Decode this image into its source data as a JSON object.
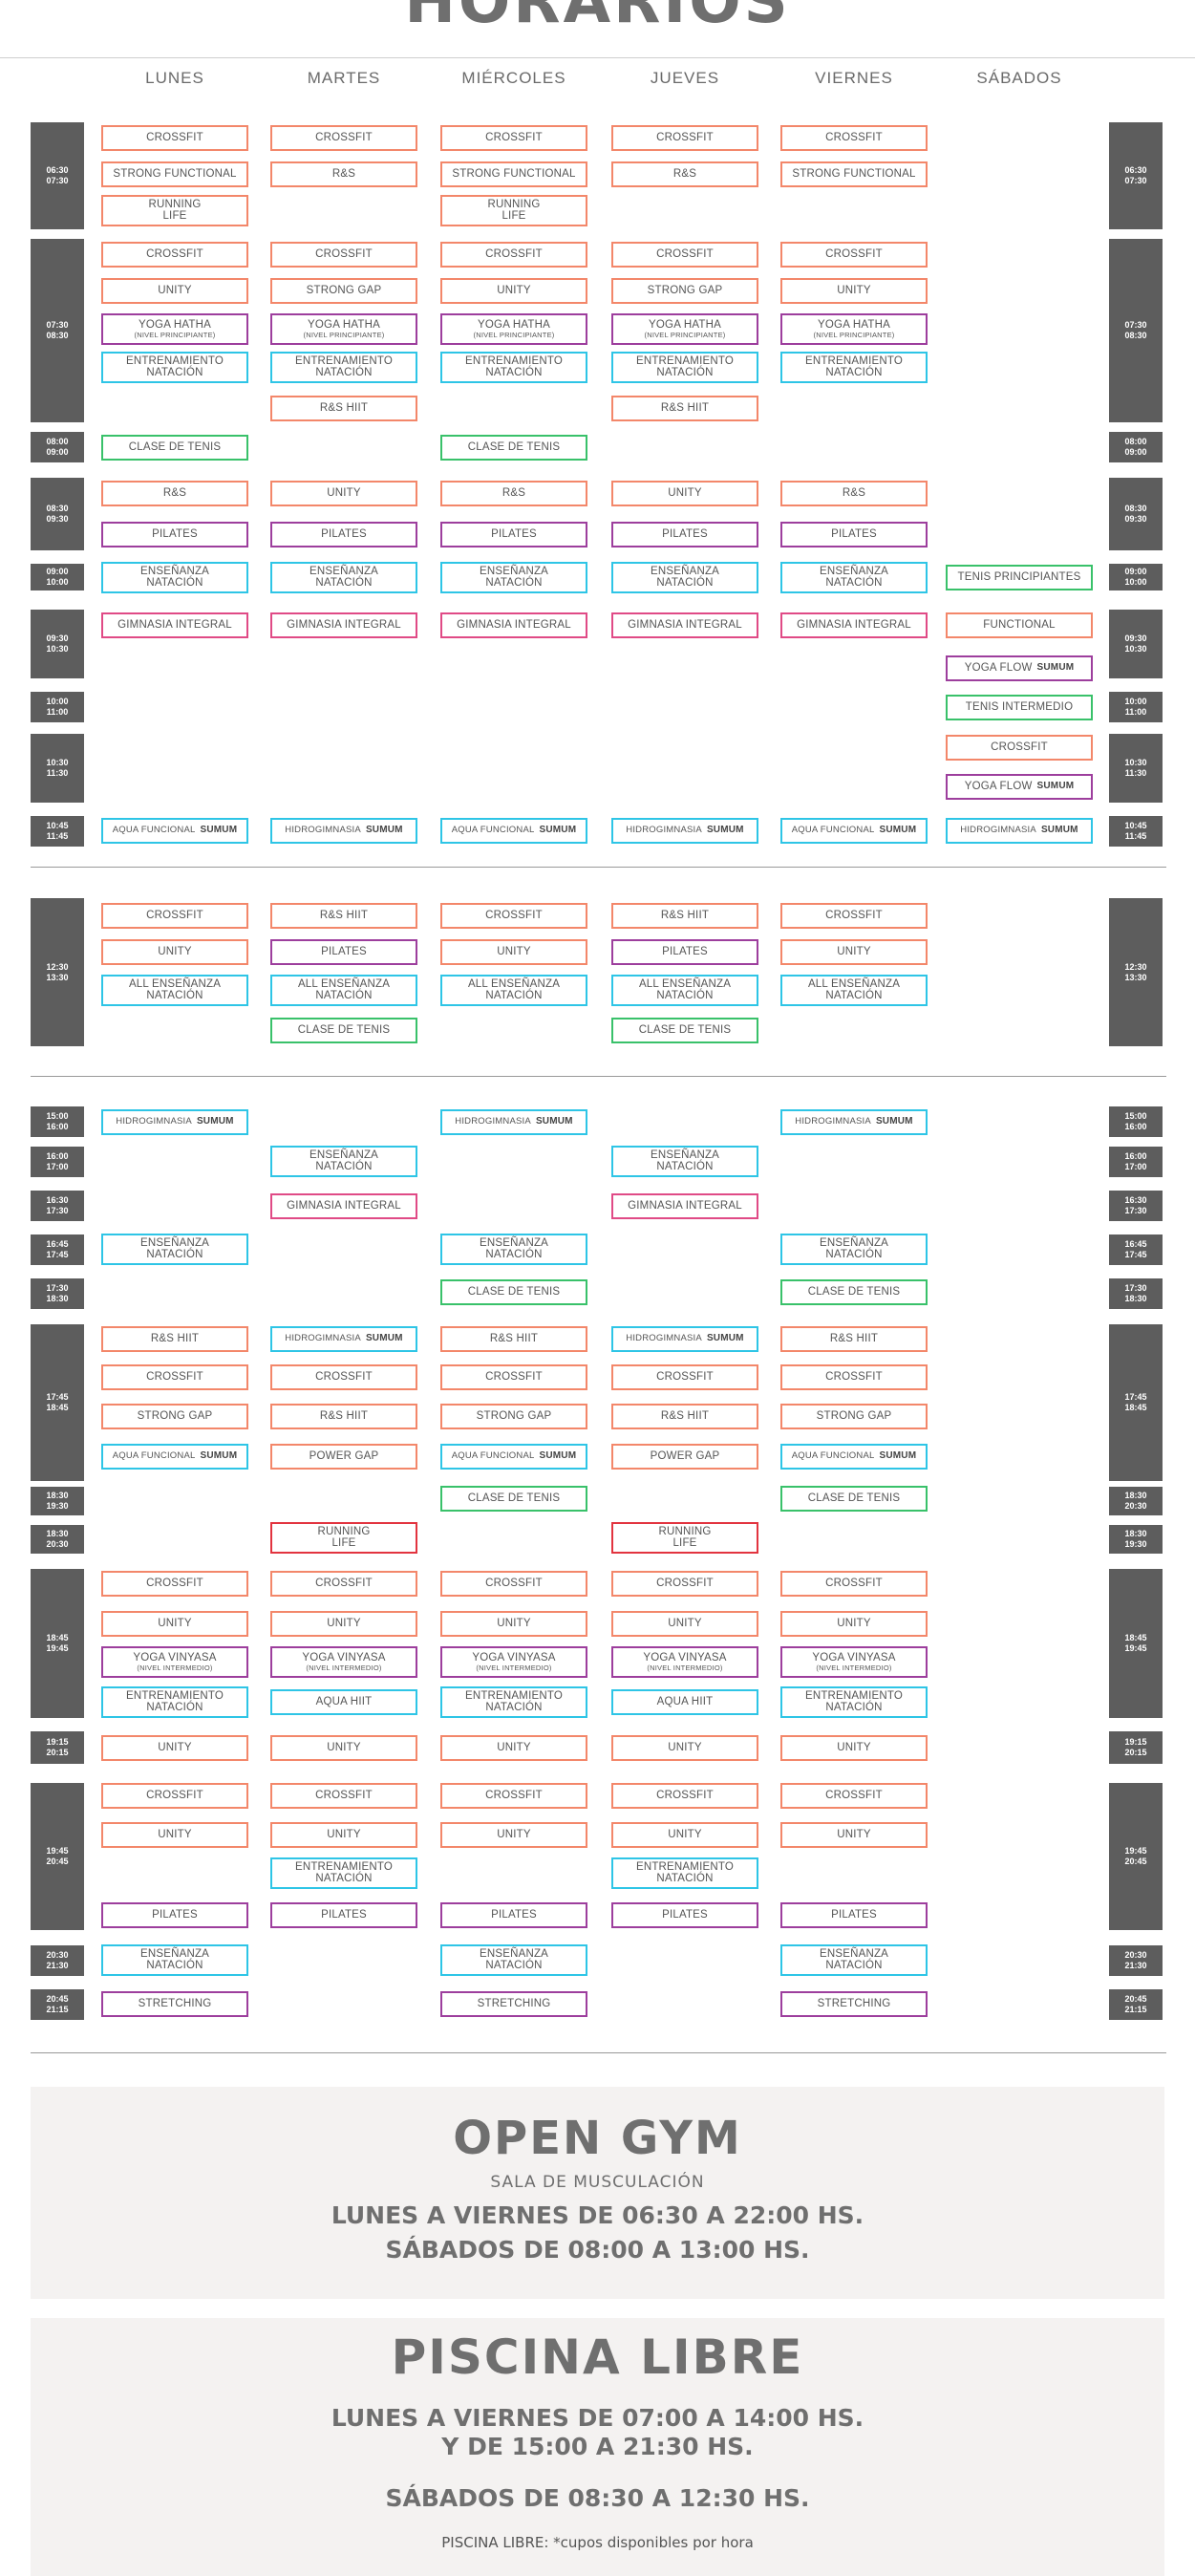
{
  "page_title": "HORARIOS",
  "days": [
    "LUNES",
    "MARTES",
    "MIÉRCOLES",
    "JUEVES",
    "VIERNES",
    "SÁBADOS"
  ],
  "colors": {
    "orange": "#f3876a",
    "purple": "#9d3e9d",
    "cyan": "#2ec5e6",
    "green": "#39c16a",
    "pink": "#e04a86",
    "red": "#e2343f",
    "time_block": "#5d5d5d",
    "panel": "#f4f2f1"
  },
  "time_blocks": [
    {
      "start": "06:30",
      "end": "07:30"
    },
    {
      "start": "07:30",
      "end": "08:30"
    },
    {
      "start": "08:00",
      "end": "09:00"
    },
    {
      "start": "08:30",
      "end": "09:30"
    },
    {
      "start": "09:00",
      "end": "10:00"
    },
    {
      "start": "09:30",
      "end": "10:30"
    },
    {
      "start": "10:00",
      "end": "11:00"
    },
    {
      "start": "10:30",
      "end": "11:30"
    },
    {
      "start": "10:45",
      "end": "11:45"
    },
    {
      "start": "12:30",
      "end": "13:30"
    },
    {
      "start": "15:00",
      "end": "16:00"
    },
    {
      "start": "16:00",
      "end": "17:00"
    },
    {
      "start": "16:30",
      "end": "17:30"
    },
    {
      "start": "16:45",
      "end": "17:45"
    },
    {
      "start": "17:30",
      "end": "18:30"
    },
    {
      "start": "17:45",
      "end": "18:45"
    },
    {
      "start": "18:30",
      "end": "19:30"
    },
    {
      "start": "18:30",
      "end": "20:30"
    },
    {
      "start": "18:45",
      "end": "19:45"
    },
    {
      "start": "19:15",
      "end": "20:15"
    },
    {
      "start": "19:45",
      "end": "20:45"
    },
    {
      "start": "20:30",
      "end": "21:30"
    },
    {
      "start": "20:45",
      "end": "21:15"
    }
  ],
  "time_blocks_right": [
    {
      "start": "06:30",
      "end": "07:30"
    },
    {
      "start": "07:30",
      "end": "08:30"
    },
    {
      "start": "08:00",
      "end": "09:00"
    },
    {
      "start": "08:30",
      "end": "09:30"
    },
    {
      "start": "09:00",
      "end": "10:00"
    },
    {
      "start": "09:30",
      "end": "10:30"
    },
    {
      "start": "10:00",
      "end": "11:00"
    },
    {
      "start": "10:30",
      "end": "11:30"
    },
    {
      "start": "10:45",
      "end": "11:45"
    },
    {
      "start": "12:30",
      "end": "13:30"
    },
    {
      "start": "15:00",
      "end": "16:00"
    },
    {
      "start": "16:00",
      "end": "17:00"
    },
    {
      "start": "16:30",
      "end": "17:30"
    },
    {
      "start": "16:45",
      "end": "17:45"
    },
    {
      "start": "17:30",
      "end": "18:30"
    },
    {
      "start": "17:45",
      "end": "18:45"
    },
    {
      "start": "18:30",
      "end": "20:30"
    },
    {
      "start": "18:30",
      "end": "19:30"
    },
    {
      "start": "18:45",
      "end": "19:45"
    },
    {
      "start": "19:15",
      "end": "20:15"
    },
    {
      "start": "19:45",
      "end": "20:45"
    },
    {
      "start": "20:30",
      "end": "21:30"
    },
    {
      "start": "20:45",
      "end": "21:15"
    }
  ],
  "brand_logo": "SUMUM",
  "classes": [
    {
      "d": 0,
      "r": 0,
      "l1": "CROSSFIT",
      "c": "orange"
    },
    {
      "d": 1,
      "r": 0,
      "l1": "CROSSFIT",
      "c": "orange"
    },
    {
      "d": 2,
      "r": 0,
      "l1": "CROSSFIT",
      "c": "orange"
    },
    {
      "d": 3,
      "r": 0,
      "l1": "CROSSFIT",
      "c": "orange"
    },
    {
      "d": 4,
      "r": 0,
      "l1": "CROSSFIT",
      "c": "orange"
    },
    {
      "d": 0,
      "r": 1,
      "l1": "STRONG FUNCTIONAL",
      "c": "orange"
    },
    {
      "d": 1,
      "r": 1,
      "l1": "R&S",
      "c": "orange"
    },
    {
      "d": 2,
      "r": 1,
      "l1": "STRONG FUNCTIONAL",
      "c": "orange"
    },
    {
      "d": 3,
      "r": 1,
      "l1": "R&S",
      "c": "orange"
    },
    {
      "d": 4,
      "r": 1,
      "l1": "STRONG FUNCTIONAL",
      "c": "orange"
    },
    {
      "d": 0,
      "r": 2,
      "l1": "RUNNING",
      "l2": "LIFE",
      "c": "orange"
    },
    {
      "d": 2,
      "r": 2,
      "l1": "RUNNING",
      "l2": "LIFE",
      "c": "orange"
    },
    {
      "d": 0,
      "r": 3,
      "l1": "CROSSFIT",
      "c": "orange"
    },
    {
      "d": 1,
      "r": 3,
      "l1": "CROSSFIT",
      "c": "orange"
    },
    {
      "d": 2,
      "r": 3,
      "l1": "CROSSFIT",
      "c": "orange"
    },
    {
      "d": 3,
      "r": 3,
      "l1": "CROSSFIT",
      "c": "orange"
    },
    {
      "d": 4,
      "r": 3,
      "l1": "CROSSFIT",
      "c": "orange"
    },
    {
      "d": 0,
      "r": 4,
      "l1": "UNITY",
      "c": "orange"
    },
    {
      "d": 1,
      "r": 4,
      "l1": "STRONG GAP",
      "c": "orange"
    },
    {
      "d": 2,
      "r": 4,
      "l1": "UNITY",
      "c": "orange"
    },
    {
      "d": 3,
      "r": 4,
      "l1": "STRONG GAP",
      "c": "orange"
    },
    {
      "d": 4,
      "r": 4,
      "l1": "UNITY",
      "c": "orange"
    },
    {
      "d": 0,
      "r": 5,
      "l1": "YOGA HATHA",
      "sub": "(NIVEL PRINCIPIANTE)",
      "c": "purple"
    },
    {
      "d": 1,
      "r": 5,
      "l1": "YOGA HATHA",
      "sub": "(NIVEL PRINCIPIANTE)",
      "c": "purple"
    },
    {
      "d": 2,
      "r": 5,
      "l1": "YOGA HATHA",
      "sub": "(NIVEL PRINCIPIANTE)",
      "c": "purple"
    },
    {
      "d": 3,
      "r": 5,
      "l1": "YOGA HATHA",
      "sub": "(NIVEL PRINCIPIANTE)",
      "c": "purple"
    },
    {
      "d": 4,
      "r": 5,
      "l1": "YOGA HATHA",
      "sub": "(NIVEL PRINCIPIANTE)",
      "c": "purple"
    },
    {
      "d": 0,
      "r": 6,
      "l1": "ENTRENAMIENTO",
      "l2": "NATACIÓN",
      "c": "cyan"
    },
    {
      "d": 1,
      "r": 6,
      "l1": "ENTRENAMIENTO",
      "l2": "NATACIÓN",
      "c": "cyan"
    },
    {
      "d": 2,
      "r": 6,
      "l1": "ENTRENAMIENTO",
      "l2": "NATACIÓN",
      "c": "cyan"
    },
    {
      "d": 3,
      "r": 6,
      "l1": "ENTRENAMIENTO",
      "l2": "NATACIÓN",
      "c": "cyan"
    },
    {
      "d": 4,
      "r": 6,
      "l1": "ENTRENAMIENTO",
      "l2": "NATACIÓN",
      "c": "cyan"
    },
    {
      "d": 1,
      "r": 7,
      "l1": "R&S HIIT",
      "c": "orange"
    },
    {
      "d": 3,
      "r": 7,
      "l1": "R&S HIIT",
      "c": "orange"
    },
    {
      "d": 0,
      "r": 8,
      "l1": "CLASE DE TENIS",
      "c": "green"
    },
    {
      "d": 2,
      "r": 8,
      "l1": "CLASE DE TENIS",
      "c": "green"
    },
    {
      "d": 0,
      "r": 9,
      "l1": "R&S",
      "c": "orange"
    },
    {
      "d": 1,
      "r": 9,
      "l1": "UNITY",
      "c": "orange"
    },
    {
      "d": 2,
      "r": 9,
      "l1": "R&S",
      "c": "orange"
    },
    {
      "d": 3,
      "r": 9,
      "l1": "UNITY",
      "c": "orange"
    },
    {
      "d": 4,
      "r": 9,
      "l1": "R&S",
      "c": "orange"
    },
    {
      "d": 0,
      "r": 10,
      "l1": "PILATES",
      "c": "purple"
    },
    {
      "d": 1,
      "r": 10,
      "l1": "PILATES",
      "c": "purple"
    },
    {
      "d": 2,
      "r": 10,
      "l1": "PILATES",
      "c": "purple"
    },
    {
      "d": 3,
      "r": 10,
      "l1": "PILATES",
      "c": "purple"
    },
    {
      "d": 4,
      "r": 10,
      "l1": "PILATES",
      "c": "purple"
    },
    {
      "d": 0,
      "r": 11,
      "l1": "ENSEÑANZA",
      "l2": "NATACIÓN",
      "c": "cyan"
    },
    {
      "d": 1,
      "r": 11,
      "l1": "ENSEÑANZA",
      "l2": "NATACIÓN",
      "c": "cyan"
    },
    {
      "d": 2,
      "r": 11,
      "l1": "ENSEÑANZA",
      "l2": "NATACIÓN",
      "c": "cyan"
    },
    {
      "d": 3,
      "r": 11,
      "l1": "ENSEÑANZA",
      "l2": "NATACIÓN",
      "c": "cyan"
    },
    {
      "d": 4,
      "r": 11,
      "l1": "ENSEÑANZA",
      "l2": "NATACIÓN",
      "c": "cyan"
    },
    {
      "d": 5,
      "r": 11,
      "l1": "TENIS PRINCIPIANTES",
      "c": "green"
    },
    {
      "d": 0,
      "r": 12,
      "l1": "GIMNASIA INTEGRAL",
      "c": "pink"
    },
    {
      "d": 1,
      "r": 12,
      "l1": "GIMNASIA INTEGRAL",
      "c": "pink"
    },
    {
      "d": 2,
      "r": 12,
      "l1": "GIMNASIA INTEGRAL",
      "c": "pink"
    },
    {
      "d": 3,
      "r": 12,
      "l1": "GIMNASIA INTEGRAL",
      "c": "pink"
    },
    {
      "d": 4,
      "r": 12,
      "l1": "GIMNASIA INTEGRAL",
      "c": "pink"
    },
    {
      "d": 5,
      "r": 12,
      "l1": "FUNCTIONAL",
      "c": "orange"
    },
    {
      "d": 5,
      "r": 13,
      "l1": "YOGA FLOW",
      "logo": true,
      "c": "purple"
    },
    {
      "d": 5,
      "r": 14,
      "l1": "TENIS INTERMEDIO",
      "c": "green"
    },
    {
      "d": 5,
      "r": 15,
      "l1": "CROSSFIT",
      "c": "orange"
    },
    {
      "d": 5,
      "r": 16,
      "l1": "YOGA FLOW",
      "logo": true,
      "c": "purple"
    },
    {
      "d": 0,
      "r": 17,
      "l1": "AQUA FUNCIONAL",
      "logo": true,
      "c": "cyan"
    },
    {
      "d": 1,
      "r": 17,
      "l1": "HIDROGIMNASIA",
      "logo": true,
      "c": "cyan"
    },
    {
      "d": 2,
      "r": 17,
      "l1": "AQUA FUNCIONAL",
      "logo": true,
      "c": "cyan"
    },
    {
      "d": 3,
      "r": 17,
      "l1": "HIDROGIMNASIA",
      "logo": true,
      "c": "cyan"
    },
    {
      "d": 4,
      "r": 17,
      "l1": "AQUA FUNCIONAL",
      "logo": true,
      "c": "cyan"
    },
    {
      "d": 5,
      "r": 17,
      "l1": "HIDROGIMNASIA",
      "logo": true,
      "c": "cyan"
    },
    {
      "d": 0,
      "r": 18,
      "l1": "CROSSFIT",
      "c": "orange"
    },
    {
      "d": 1,
      "r": 18,
      "l1": "R&S HIIT",
      "c": "orange"
    },
    {
      "d": 2,
      "r": 18,
      "l1": "CROSSFIT",
      "c": "orange"
    },
    {
      "d": 3,
      "r": 18,
      "l1": "R&S HIIT",
      "c": "orange"
    },
    {
      "d": 4,
      "r": 18,
      "l1": "CROSSFIT",
      "c": "orange"
    },
    {
      "d": 0,
      "r": 19,
      "l1": "UNITY",
      "c": "orange"
    },
    {
      "d": 1,
      "r": 19,
      "l1": "PILATES",
      "c": "purple"
    },
    {
      "d": 2,
      "r": 19,
      "l1": "UNITY",
      "c": "orange"
    },
    {
      "d": 3,
      "r": 19,
      "l1": "PILATES",
      "c": "purple"
    },
    {
      "d": 4,
      "r": 19,
      "l1": "UNITY",
      "c": "orange"
    },
    {
      "d": 0,
      "r": 20,
      "l1": "ALL ENSEÑANZA",
      "l2": "NATACIÓN",
      "c": "cyan"
    },
    {
      "d": 1,
      "r": 20,
      "l1": "ALL ENSEÑANZA",
      "l2": "NATACIÓN",
      "c": "cyan"
    },
    {
      "d": 2,
      "r": 20,
      "l1": "ALL ENSEÑANZA",
      "l2": "NATACIÓN",
      "c": "cyan"
    },
    {
      "d": 3,
      "r": 20,
      "l1": "ALL ENSEÑANZA",
      "l2": "NATACIÓN",
      "c": "cyan"
    },
    {
      "d": 4,
      "r": 20,
      "l1": "ALL ENSEÑANZA",
      "l2": "NATACIÓN",
      "c": "cyan"
    },
    {
      "d": 1,
      "r": 21,
      "l1": "CLASE DE TENIS",
      "c": "green"
    },
    {
      "d": 3,
      "r": 21,
      "l1": "CLASE DE TENIS",
      "c": "green"
    },
    {
      "d": 0,
      "r": 22,
      "l1": "HIDROGIMNASIA",
      "logo": true,
      "c": "cyan"
    },
    {
      "d": 2,
      "r": 22,
      "l1": "HIDROGIMNASIA",
      "logo": true,
      "c": "cyan"
    },
    {
      "d": 4,
      "r": 22,
      "l1": "HIDROGIMNASIA",
      "logo": true,
      "c": "cyan"
    },
    {
      "d": 1,
      "r": 23,
      "l1": "ENSEÑANZA",
      "l2": "NATACIÓN",
      "c": "cyan"
    },
    {
      "d": 3,
      "r": 23,
      "l1": "ENSEÑANZA",
      "l2": "NATACIÓN",
      "c": "cyan"
    },
    {
      "d": 1,
      "r": 24,
      "l1": "GIMNASIA INTEGRAL",
      "c": "pink"
    },
    {
      "d": 3,
      "r": 24,
      "l1": "GIMNASIA INTEGRAL",
      "c": "pink"
    },
    {
      "d": 0,
      "r": 25,
      "l1": "ENSEÑANZA",
      "l2": "NATACIÓN",
      "c": "cyan"
    },
    {
      "d": 2,
      "r": 25,
      "l1": "ENSEÑANZA",
      "l2": "NATACIÓN",
      "c": "cyan"
    },
    {
      "d": 4,
      "r": 25,
      "l1": "ENSEÑANZA",
      "l2": "NATACIÓN",
      "c": "cyan"
    },
    {
      "d": 2,
      "r": 26,
      "l1": "CLASE DE TENIS",
      "c": "green"
    },
    {
      "d": 4,
      "r": 26,
      "l1": "CLASE DE TENIS",
      "c": "green"
    },
    {
      "d": 0,
      "r": 27,
      "l1": "R&S HIIT",
      "c": "orange"
    },
    {
      "d": 1,
      "r": 27,
      "l1": "HIDROGIMNASIA",
      "logo": true,
      "c": "cyan"
    },
    {
      "d": 2,
      "r": 27,
      "l1": "R&S HIIT",
      "c": "orange"
    },
    {
      "d": 3,
      "r": 27,
      "l1": "HIDROGIMNASIA",
      "logo": true,
      "c": "cyan"
    },
    {
      "d": 4,
      "r": 27,
      "l1": "R&S HIIT",
      "c": "orange"
    },
    {
      "d": 0,
      "r": 28,
      "l1": "CROSSFIT",
      "c": "orange"
    },
    {
      "d": 1,
      "r": 28,
      "l1": "CROSSFIT",
      "c": "orange"
    },
    {
      "d": 2,
      "r": 28,
      "l1": "CROSSFIT",
      "c": "orange"
    },
    {
      "d": 3,
      "r": 28,
      "l1": "CROSSFIT",
      "c": "orange"
    },
    {
      "d": 4,
      "r": 28,
      "l1": "CROSSFIT",
      "c": "orange"
    },
    {
      "d": 0,
      "r": 29,
      "l1": "STRONG GAP",
      "c": "orange"
    },
    {
      "d": 1,
      "r": 29,
      "l1": "R&S HIIT",
      "c": "orange"
    },
    {
      "d": 2,
      "r": 29,
      "l1": "STRONG GAP",
      "c": "orange"
    },
    {
      "d": 3,
      "r": 29,
      "l1": "R&S HIIT",
      "c": "orange"
    },
    {
      "d": 4,
      "r": 29,
      "l1": "STRONG GAP",
      "c": "orange"
    },
    {
      "d": 0,
      "r": 30,
      "l1": "AQUA FUNCIONAL",
      "logo": true,
      "c": "cyan"
    },
    {
      "d": 1,
      "r": 30,
      "l1": "POWER GAP",
      "c": "orange"
    },
    {
      "d": 2,
      "r": 30,
      "l1": "AQUA FUNCIONAL",
      "logo": true,
      "c": "cyan"
    },
    {
      "d": 3,
      "r": 30,
      "l1": "POWER GAP",
      "c": "orange"
    },
    {
      "d": 4,
      "r": 30,
      "l1": "AQUA FUNCIONAL",
      "logo": true,
      "c": "cyan"
    },
    {
      "d": 2,
      "r": 31,
      "l1": "CLASE DE TENIS",
      "c": "green"
    },
    {
      "d": 4,
      "r": 31,
      "l1": "CLASE DE TENIS",
      "c": "green"
    },
    {
      "d": 1,
      "r": 32,
      "l1": "RUNNING",
      "l2": "LIFE",
      "c": "red"
    },
    {
      "d": 3,
      "r": 32,
      "l1": "RUNNING",
      "l2": "LIFE",
      "c": "red"
    },
    {
      "d": 0,
      "r": 33,
      "l1": "CROSSFIT",
      "c": "orange"
    },
    {
      "d": 1,
      "r": 33,
      "l1": "CROSSFIT",
      "c": "orange"
    },
    {
      "d": 2,
      "r": 33,
      "l1": "CROSSFIT",
      "c": "orange"
    },
    {
      "d": 3,
      "r": 33,
      "l1": "CROSSFIT",
      "c": "orange"
    },
    {
      "d": 4,
      "r": 33,
      "l1": "CROSSFIT",
      "c": "orange"
    },
    {
      "d": 0,
      "r": 34,
      "l1": "UNITY",
      "c": "orange"
    },
    {
      "d": 1,
      "r": 34,
      "l1": "UNITY",
      "c": "orange"
    },
    {
      "d": 2,
      "r": 34,
      "l1": "UNITY",
      "c": "orange"
    },
    {
      "d": 3,
      "r": 34,
      "l1": "UNITY",
      "c": "orange"
    },
    {
      "d": 4,
      "r": 34,
      "l1": "UNITY",
      "c": "orange"
    },
    {
      "d": 0,
      "r": 35,
      "l1": "YOGA VINYASA",
      "sub": "(NIVEL INTERMEDIO)",
      "c": "purple"
    },
    {
      "d": 1,
      "r": 35,
      "l1": "YOGA VINYASA",
      "sub": "(NIVEL INTERMEDIO)",
      "c": "purple"
    },
    {
      "d": 2,
      "r": 35,
      "l1": "YOGA VINYASA",
      "sub": "(NIVEL INTERMEDIO)",
      "c": "purple"
    },
    {
      "d": 3,
      "r": 35,
      "l1": "YOGA VINYASA",
      "sub": "(NIVEL INTERMEDIO)",
      "c": "purple"
    },
    {
      "d": 4,
      "r": 35,
      "l1": "YOGA VINYASA",
      "sub": "(NIVEL INTERMEDIO)",
      "c": "purple"
    },
    {
      "d": 0,
      "r": 36,
      "l1": "ENTRENAMIENTO",
      "l2": "NATACIÓN",
      "c": "cyan"
    },
    {
      "d": 1,
      "r": 36,
      "l1": "AQUA HIIT",
      "c": "cyan"
    },
    {
      "d": 2,
      "r": 36,
      "l1": "ENTRENAMIENTO",
      "l2": "NATACIÓN",
      "c": "cyan"
    },
    {
      "d": 3,
      "r": 36,
      "l1": "AQUA HIIT",
      "c": "cyan"
    },
    {
      "d": 4,
      "r": 36,
      "l1": "ENTRENAMIENTO",
      "l2": "NATACIÓN",
      "c": "cyan"
    },
    {
      "d": 0,
      "r": 37,
      "l1": "UNITY",
      "c": "orange"
    },
    {
      "d": 1,
      "r": 37,
      "l1": "UNITY",
      "c": "orange"
    },
    {
      "d": 2,
      "r": 37,
      "l1": "UNITY",
      "c": "orange"
    },
    {
      "d": 3,
      "r": 37,
      "l1": "UNITY",
      "c": "orange"
    },
    {
      "d": 4,
      "r": 37,
      "l1": "UNITY",
      "c": "orange"
    },
    {
      "d": 0,
      "r": 38,
      "l1": "CROSSFIT",
      "c": "orange"
    },
    {
      "d": 1,
      "r": 38,
      "l1": "CROSSFIT",
      "c": "orange"
    },
    {
      "d": 2,
      "r": 38,
      "l1": "CROSSFIT",
      "c": "orange"
    },
    {
      "d": 3,
      "r": 38,
      "l1": "CROSSFIT",
      "c": "orange"
    },
    {
      "d": 4,
      "r": 38,
      "l1": "CROSSFIT",
      "c": "orange"
    },
    {
      "d": 0,
      "r": 39,
      "l1": "UNITY",
      "c": "orange"
    },
    {
      "d": 1,
      "r": 39,
      "l1": "UNITY",
      "c": "orange"
    },
    {
      "d": 2,
      "r": 39,
      "l1": "UNITY",
      "c": "orange"
    },
    {
      "d": 3,
      "r": 39,
      "l1": "UNITY",
      "c": "orange"
    },
    {
      "d": 4,
      "r": 39,
      "l1": "UNITY",
      "c": "orange"
    },
    {
      "d": 1,
      "r": 40,
      "l1": "ENTRENAMIENTO",
      "l2": "NATACIÓN",
      "c": "cyan"
    },
    {
      "d": 3,
      "r": 40,
      "l1": "ENTRENAMIENTO",
      "l2": "NATACIÓN",
      "c": "cyan"
    },
    {
      "d": 0,
      "r": 41,
      "l1": "PILATES",
      "c": "purple"
    },
    {
      "d": 1,
      "r": 41,
      "l1": "PILATES",
      "c": "purple"
    },
    {
      "d": 2,
      "r": 41,
      "l1": "PILATES",
      "c": "purple"
    },
    {
      "d": 3,
      "r": 41,
      "l1": "PILATES",
      "c": "purple"
    },
    {
      "d": 4,
      "r": 41,
      "l1": "PILATES",
      "c": "purple"
    },
    {
      "d": 0,
      "r": 42,
      "l1": "ENSEÑANZA",
      "l2": "NATACIÓN",
      "c": "cyan"
    },
    {
      "d": 2,
      "r": 42,
      "l1": "ENSEÑANZA",
      "l2": "NATACIÓN",
      "c": "cyan"
    },
    {
      "d": 4,
      "r": 42,
      "l1": "ENSEÑANZA",
      "l2": "NATACIÓN",
      "c": "cyan"
    },
    {
      "d": 0,
      "r": 43,
      "l1": "STRETCHING",
      "c": "purple"
    },
    {
      "d": 2,
      "r": 43,
      "l1": "STRETCHING",
      "c": "purple"
    },
    {
      "d": 4,
      "r": 43,
      "l1": "STRETCHING",
      "c": "purple"
    }
  ],
  "open_gym": {
    "title": "OPEN GYM",
    "subtitle": "SALA DE MUSCULACIÓN",
    "line1": "LUNES A VIERNES DE 06:30 A 22:00 HS.",
    "line2": "SÁBADOS DE 08:00 A 13:00 HS."
  },
  "piscina": {
    "title": "PISCINA LIBRE",
    "line1": "LUNES A VIERNES DE 07:00 A 14:00 HS.",
    "line2": "Y DE 15:00 A 21:30 HS.",
    "line3": "SÁBADOS DE 08:30 A 12:30 HS.",
    "note": "PISCINA LIBRE: *cupos disponibles por hora"
  }
}
